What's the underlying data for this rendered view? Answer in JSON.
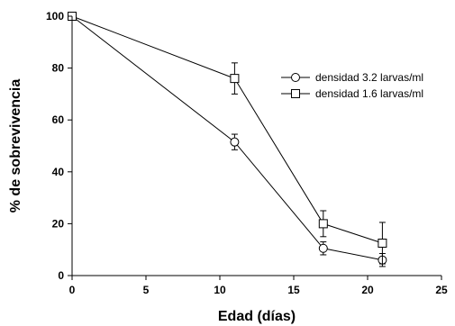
{
  "chart_data": {
    "type": "line",
    "title": "",
    "xlabel": "Edad (días)",
    "ylabel": "% de sobrevivencia",
    "xlim": [
      0,
      25
    ],
    "ylim": [
      0,
      100
    ],
    "x_ticks": [
      0,
      5,
      10,
      15,
      20,
      25
    ],
    "y_ticks": [
      0,
      20,
      40,
      60,
      80,
      100
    ],
    "grid": false,
    "legend_position": "top-right",
    "series": [
      {
        "name": "densidad 3.2 larvas/ml",
        "marker": "circle",
        "color": "#000000",
        "x": [
          0,
          11,
          17,
          21
        ],
        "y": [
          100,
          51.5,
          10.5,
          6
        ],
        "error": [
          0,
          3,
          2.5,
          2.5
        ]
      },
      {
        "name": "densidad 1.6 larvas/ml",
        "marker": "square",
        "color": "#000000",
        "x": [
          0,
          11,
          17,
          21
        ],
        "y": [
          100,
          76,
          20,
          12.5
        ],
        "error": [
          0,
          6,
          5,
          8
        ]
      }
    ]
  }
}
